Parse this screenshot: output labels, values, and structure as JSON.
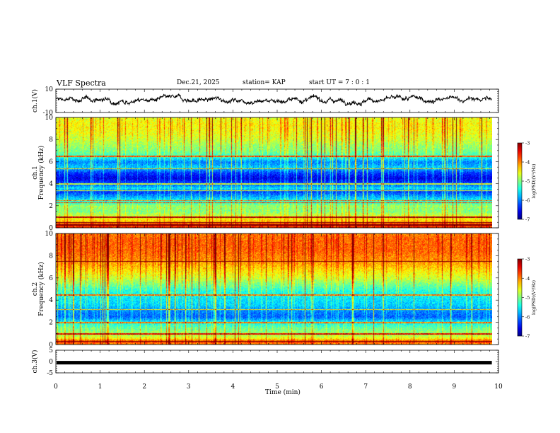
{
  "header": {
    "title": "VLF Spectra",
    "date": "Dec.21, 2025",
    "station": "station= KAP",
    "start_ut": "start UT =  7 : 0  : 1"
  },
  "chart_data": [
    {
      "type": "line",
      "panel": "ch1-waveform",
      "ylabel": "ch.1(V)",
      "ylim": [
        -10,
        10
      ],
      "yticks": [
        "10",
        "-10"
      ],
      "series": [
        {
          "name": "ch.1",
          "description_free": true
        }
      ],
      "x_range": [
        0,
        9.85
      ]
    },
    {
      "type": "heatmap",
      "panel": "ch1-spectrogram",
      "ylabel": "ch.1\nFrequency (kHz)",
      "ylim": [
        0,
        10
      ],
      "yticks": [
        "0",
        "2",
        "4",
        "6",
        "8",
        "10"
      ],
      "colorbar": {
        "label": "log(PSD)(V²/Hz)",
        "range": [
          -7,
          -3
        ],
        "ticks": [
          "-3",
          "-4",
          "-5",
          "-6",
          "-7"
        ]
      },
      "profile_khz": [
        [
          0,
          -3.8
        ],
        [
          0.3,
          -3.6
        ],
        [
          0.6,
          -4.3
        ],
        [
          1,
          -4.6
        ],
        [
          1.5,
          -5.0
        ],
        [
          2,
          -4.9
        ],
        [
          2.3,
          -5.3
        ],
        [
          2.6,
          -5.6
        ],
        [
          3,
          -6.0
        ],
        [
          3.3,
          -6.3
        ],
        [
          3.6,
          -5.6
        ],
        [
          4,
          -6.2
        ],
        [
          4.5,
          -6.6
        ],
        [
          5,
          -6.3
        ],
        [
          5.5,
          -5.7
        ],
        [
          6,
          -6.0
        ],
        [
          6.5,
          -5.3
        ],
        [
          7,
          -5.0
        ],
        [
          7.5,
          -4.9
        ],
        [
          8,
          -4.7
        ],
        [
          8.5,
          -4.6
        ],
        [
          9,
          -4.5
        ],
        [
          9.5,
          -4.5
        ],
        [
          10,
          -4.6
        ]
      ],
      "lines_khz": [
        0.3,
        0.5,
        1.0,
        2.3,
        2.5,
        3.4,
        4.0,
        5.4,
        6.5
      ]
    },
    {
      "type": "heatmap",
      "panel": "ch2-spectrogram",
      "ylabel": "ch.2\nFrequency (kHz)",
      "ylim": [
        0,
        10
      ],
      "yticks": [
        "0",
        "2",
        "4",
        "6",
        "8",
        "10"
      ],
      "colorbar": {
        "label": "log(PSD)(V²/Hz)",
        "range": [
          -7,
          -3
        ],
        "ticks": [
          "-3",
          "-4",
          "-5",
          "-6",
          "-7"
        ]
      },
      "profile_khz": [
        [
          0,
          -4.2
        ],
        [
          0.3,
          -3.7
        ],
        [
          0.6,
          -4.6
        ],
        [
          1,
          -4.9
        ],
        [
          1.5,
          -5.1
        ],
        [
          2,
          -5.5
        ],
        [
          2.5,
          -6.1
        ],
        [
          3,
          -6.0
        ],
        [
          3.5,
          -5.7
        ],
        [
          4,
          -5.6
        ],
        [
          4.5,
          -5.5
        ],
        [
          5,
          -5.3
        ],
        [
          5.5,
          -5.0
        ],
        [
          6,
          -4.7
        ],
        [
          6.5,
          -4.5
        ],
        [
          7,
          -4.3
        ],
        [
          7.5,
          -4.1
        ],
        [
          8,
          -4.0
        ],
        [
          8.5,
          -3.9
        ],
        [
          9,
          -3.9
        ],
        [
          9.5,
          -3.9
        ],
        [
          10,
          -4.0
        ]
      ],
      "lines_khz": [
        0.3,
        1.0,
        2.0,
        3.2,
        4.5,
        7.5
      ]
    },
    {
      "type": "line",
      "panel": "ch3-waveform",
      "ylabel": "ch.3(V)",
      "ylim": [
        -5,
        5
      ],
      "yticks": [
        "5",
        "0",
        "-5"
      ],
      "level": -0.5,
      "x_range": [
        0,
        9.85
      ]
    }
  ],
  "xaxis": {
    "label": "Time (min)",
    "range": [
      0,
      10
    ],
    "ticks": [
      "0",
      "1",
      "2",
      "3",
      "4",
      "5",
      "6",
      "7",
      "8",
      "9",
      "10"
    ]
  }
}
